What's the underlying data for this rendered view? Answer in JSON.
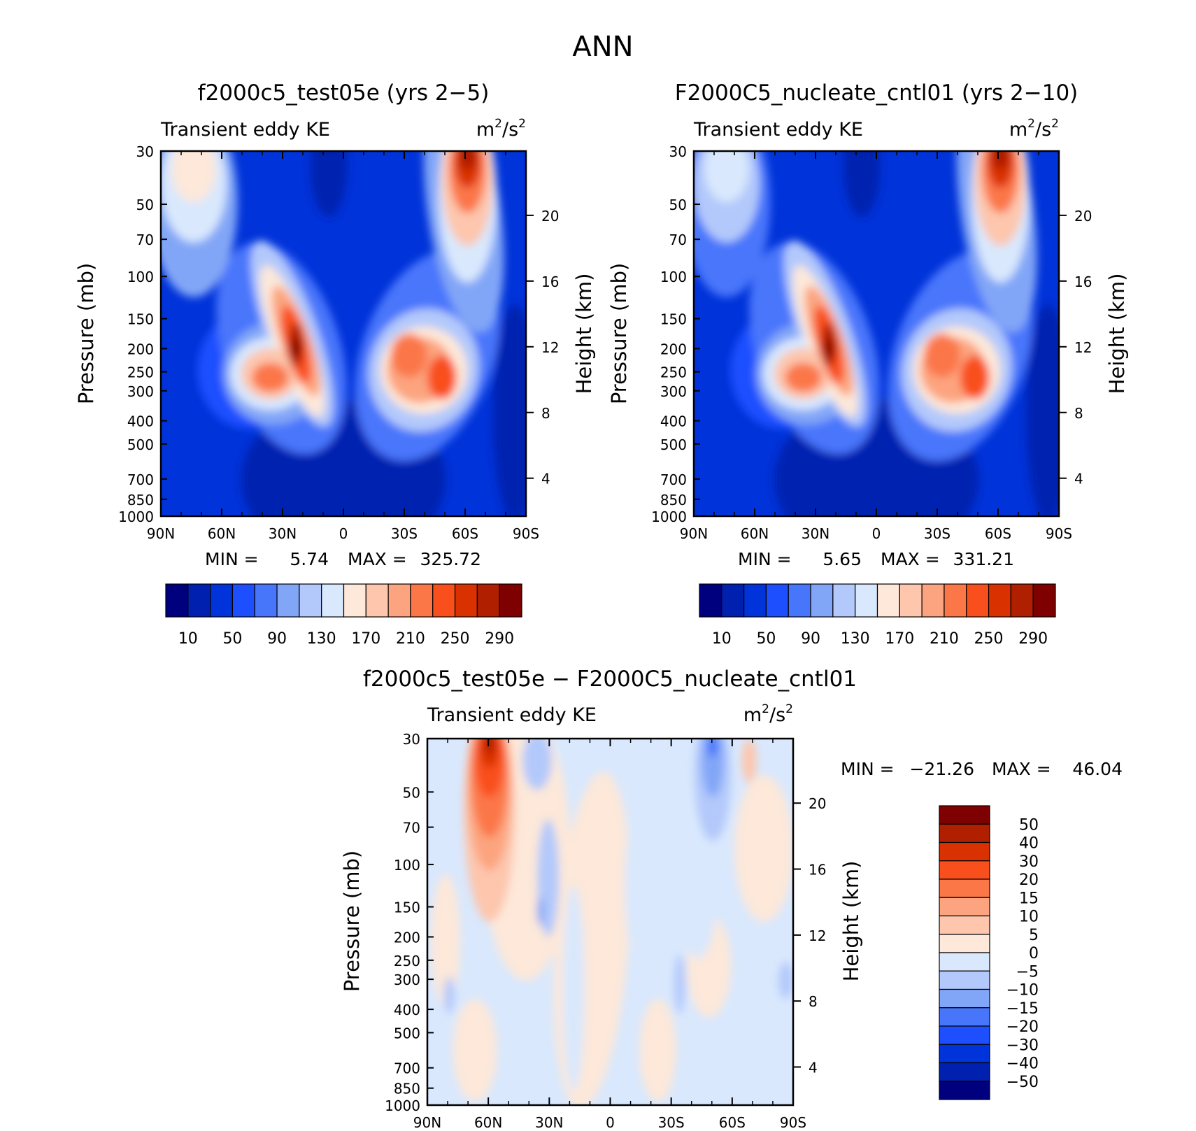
{
  "figure_title": "ANN",
  "colors": {
    "abs_scale": [
      "#00007f",
      "#0020b0",
      "#0033d9",
      "#1d4fff",
      "#4876fb",
      "#82a6f7",
      "#b3c9fb",
      "#d9e8fd",
      "#fde8d9",
      "#fdc6ad",
      "#fca47f",
      "#fb7748",
      "#f94f1d",
      "#d93100",
      "#b01f00",
      "#7f0000"
    ],
    "diff_scale": [
      "#00007f",
      "#0020b0",
      "#0033d9",
      "#1d4fff",
      "#4876fb",
      "#82a6f7",
      "#b3c9fb",
      "#d9e8fd",
      "#fde8d9",
      "#fdc6ad",
      "#fca47f",
      "#fb7748",
      "#f94f1d",
      "#d93100",
      "#b01f00",
      "#7f0000"
    ]
  },
  "chart_data": [
    {
      "type": "heatmap",
      "title": "f2000c5_test05e (yrs 2−5)",
      "left_label": "Transient eddy KE",
      "units_base": "m",
      "units_exp": "2",
      "units_mid": "/s",
      "units_exp2": "2",
      "ylabel": "Pressure (mb)",
      "ylabel_right": "Height (km)",
      "y_ticks": [
        "30",
        "50",
        "70",
        "100",
        "150",
        "200",
        "250",
        "300",
        "400",
        "500",
        "700",
        "850",
        "1000"
      ],
      "y_right_ticks": [
        "20",
        "16",
        "12",
        "8",
        "4"
      ],
      "x_ticks": [
        "90N",
        "60N",
        "30N",
        "0",
        "30S",
        "60S",
        "90S"
      ],
      "min_label": "MIN =",
      "min_value": "5.74",
      "max_label": "MAX =",
      "max_value": "325.72",
      "colorbar_labels": [
        "10",
        "50",
        "90",
        "130",
        "170",
        "210",
        "250",
        "290"
      ],
      "field": "abs1"
    },
    {
      "type": "heatmap",
      "title": "F2000C5_nucleate_cntl01 (yrs 2−10)",
      "left_label": "Transient eddy KE",
      "units_base": "m",
      "units_exp": "2",
      "units_mid": "/s",
      "units_exp2": "2",
      "ylabel": "Pressure (mb)",
      "ylabel_right": "Height (km)",
      "y_ticks": [
        "30",
        "50",
        "70",
        "100",
        "150",
        "200",
        "250",
        "300",
        "400",
        "500",
        "700",
        "850",
        "1000"
      ],
      "y_right_ticks": [
        "20",
        "16",
        "12",
        "8",
        "4"
      ],
      "x_ticks": [
        "90N",
        "60N",
        "30N",
        "0",
        "30S",
        "60S",
        "90S"
      ],
      "min_label": "MIN =",
      "min_value": "5.65",
      "max_label": "MAX =",
      "max_value": "331.21",
      "colorbar_labels": [
        "10",
        "50",
        "90",
        "130",
        "170",
        "210",
        "250",
        "290"
      ],
      "field": "abs2"
    },
    {
      "type": "heatmap",
      "title": "f2000c5_test05e − F2000C5_nucleate_cntl01",
      "left_label": "Transient eddy KE",
      "units_base": "m",
      "units_exp": "2",
      "units_mid": "/s",
      "units_exp2": "2",
      "ylabel": "Pressure (mb)",
      "ylabel_right": "Height (km)",
      "y_ticks": [
        "30",
        "50",
        "70",
        "100",
        "150",
        "200",
        "250",
        "300",
        "400",
        "500",
        "700",
        "850",
        "1000"
      ],
      "y_right_ticks": [
        "20",
        "16",
        "12",
        "8",
        "4"
      ],
      "x_ticks": [
        "90N",
        "60N",
        "30N",
        "0",
        "30S",
        "60S",
        "90S"
      ],
      "min_label": "MIN =",
      "min_value": "−21.26",
      "max_label": "MAX =",
      "max_value": "46.04",
      "colorbar_labels": [
        "50",
        "40",
        "30",
        "20",
        "15",
        "10",
        "5",
        "0",
        "−5",
        "−10",
        "−15",
        "−20",
        "−30",
        "−40",
        "−50"
      ],
      "field": "diff"
    }
  ]
}
